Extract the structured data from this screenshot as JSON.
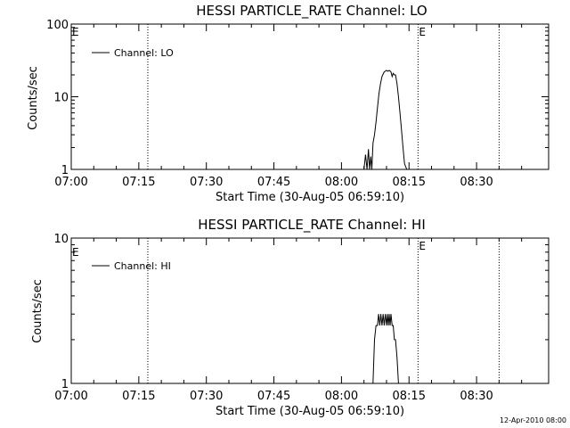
{
  "footer_timestamp": "12-Apr-2010 08:00",
  "chart_data": [
    {
      "type": "line",
      "title": "HESSI PARTICLE_RATE Channel: LO",
      "xlabel": "Start Time (30-Aug-05 06:59:10)",
      "ylabel": "Counts/sec",
      "y_scale": "log",
      "ylim": [
        1,
        100
      ],
      "y_ticks": [
        "1",
        "10",
        "100"
      ],
      "x_ticks": [
        "07:00",
        "07:15",
        "07:30",
        "07:45",
        "08:00",
        "08:15",
        "08:30"
      ],
      "xlim": [
        "07:00",
        "08:46"
      ],
      "legend": {
        "position": "top-left",
        "entries": [
          "Channel: LO"
        ]
      },
      "markers": [
        {
          "time": "07:17",
          "label": ""
        },
        {
          "time": "08:17",
          "label": "E"
        },
        {
          "time": "08:35",
          "label": ""
        }
      ],
      "corner_label": "E",
      "series": [
        {
          "name": "Channel: LO",
          "x": [
            "08:05",
            "08:05",
            "08:05",
            "08:06",
            "08:06",
            "08:06",
            "08:06",
            "08:07",
            "08:07",
            "08:07",
            "08:08",
            "08:08",
            "08:08",
            "08:09",
            "08:09",
            "08:10",
            "08:10",
            "08:10",
            "08:11",
            "08:11",
            "08:11",
            "08:11",
            "08:12",
            "08:12",
            "08:12",
            "08:13",
            "08:13",
            "08:13",
            "08:14",
            "08:14"
          ],
          "y": [
            1,
            1.6,
            1,
            1.9,
            1,
            1.5,
            1,
            2.3,
            3.0,
            4.5,
            7.0,
            11,
            15,
            19,
            22,
            23,
            22.5,
            23,
            22,
            19,
            21,
            20,
            20,
            15,
            10,
            6,
            3.5,
            2.0,
            1.2,
            1
          ]
        }
      ]
    },
    {
      "type": "line",
      "title": "HESSI PARTICLE_RATE Channel: HI",
      "xlabel": "Start Time (30-Aug-05 06:59:10)",
      "ylabel": "Counts/sec",
      "y_scale": "log",
      "ylim": [
        1,
        10
      ],
      "y_ticks": [
        "1",
        "10"
      ],
      "x_ticks": [
        "07:00",
        "07:15",
        "07:30",
        "07:45",
        "08:00",
        "08:15",
        "08:30"
      ],
      "xlim": [
        "07:00",
        "08:46"
      ],
      "legend": {
        "position": "top-left",
        "entries": [
          "Channel: HI"
        ]
      },
      "markers": [
        {
          "time": "07:17",
          "label": ""
        },
        {
          "time": "08:17",
          "label": "E"
        },
        {
          "time": "08:35",
          "label": ""
        }
      ],
      "corner_label": "E",
      "series": [
        {
          "name": "Channel: HI",
          "x": [
            "08:07",
            "08:07",
            "08:07",
            "08:08",
            "08:08",
            "08:08",
            "08:08",
            "08:09",
            "08:09",
            "08:09",
            "08:09",
            "08:10",
            "08:10",
            "08:10",
            "08:10",
            "08:10",
            "08:11",
            "08:11",
            "08:11",
            "08:11",
            "08:12",
            "08:12",
            "08:12"
          ],
          "y": [
            1,
            2,
            2.5,
            2.5,
            3,
            2.5,
            3,
            2.5,
            3,
            2.5,
            3,
            2.5,
            3,
            2.5,
            3,
            2.5,
            3,
            2.5,
            2.5,
            2,
            2,
            1.5,
            1
          ]
        }
      ]
    }
  ]
}
